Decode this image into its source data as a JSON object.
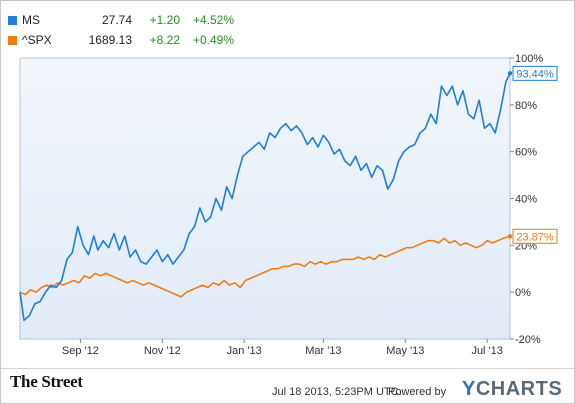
{
  "legend": [
    {
      "symbol": "MS",
      "price": "27.74",
      "change": "+1.20",
      "pct_change": "+4.52%",
      "color": "#1f7fd6"
    },
    {
      "symbol": "^SPX",
      "price": "1689.13",
      "change": "+8.22",
      "pct_change": "+0.49%",
      "color": "#ef7d16"
    }
  ],
  "footer": {
    "logo_text": "The Street",
    "timestamp": "Jul 18 2013, 5:23PM UTC.",
    "powered_by": "Powered by",
    "brand_y": "Y",
    "brand_rest": "CHARTS"
  },
  "chart_data": {
    "type": "line",
    "title": "",
    "xlabel": "",
    "ylabel": "",
    "ylim": [
      -20,
      100
    ],
    "yticks": [
      "100%",
      "80%",
      "60%",
      "40%",
      "20%",
      "0%",
      "-20%"
    ],
    "xticks": [
      "Sep '12",
      "Nov '12",
      "Jan '13",
      "Mar '13",
      "May '13",
      "Jul '13"
    ],
    "grid": false,
    "end_labels": [
      "93.44%",
      "23.87%"
    ],
    "series": [
      {
        "name": "MS",
        "color": "#1f7fd6",
        "x": [
          "2012-07-18",
          "2012-07-21",
          "2012-07-25",
          "2012-07-29",
          "2012-08-02",
          "2012-08-06",
          "2012-08-10",
          "2012-08-14",
          "2012-08-18",
          "2012-08-22",
          "2012-08-26",
          "2012-08-30",
          "2012-09-03",
          "2012-09-07",
          "2012-09-11",
          "2012-09-14",
          "2012-09-18",
          "2012-09-22",
          "2012-09-26",
          "2012-09-30",
          "2012-10-04",
          "2012-10-08",
          "2012-10-12",
          "2012-10-16",
          "2012-10-20",
          "2012-10-24",
          "2012-10-28",
          "2012-11-01",
          "2012-11-05",
          "2012-11-09",
          "2012-11-13",
          "2012-11-17",
          "2012-11-21",
          "2012-11-25",
          "2012-11-29",
          "2012-12-03",
          "2012-12-07",
          "2012-12-11",
          "2012-12-15",
          "2012-12-19",
          "2012-12-23",
          "2012-12-27",
          "2012-12-31",
          "2013-01-04",
          "2013-01-08",
          "2013-01-12",
          "2013-01-16",
          "2013-01-20",
          "2013-01-24",
          "2013-01-28",
          "2013-02-01",
          "2013-02-05",
          "2013-02-09",
          "2013-02-13",
          "2013-02-17",
          "2013-02-21",
          "2013-02-25",
          "2013-03-01",
          "2013-03-05",
          "2013-03-09",
          "2013-03-13",
          "2013-03-17",
          "2013-03-21",
          "2013-03-25",
          "2013-03-29",
          "2013-04-02",
          "2013-04-06",
          "2013-04-10",
          "2013-04-14",
          "2013-04-18",
          "2013-04-22",
          "2013-04-26",
          "2013-04-30",
          "2013-05-04",
          "2013-05-08",
          "2013-05-12",
          "2013-05-16",
          "2013-05-20",
          "2013-05-24",
          "2013-05-28",
          "2013-06-01",
          "2013-06-05",
          "2013-06-09",
          "2013-06-13",
          "2013-06-17",
          "2013-06-21",
          "2013-06-25",
          "2013-06-29",
          "2013-07-03",
          "2013-07-07",
          "2013-07-11",
          "2013-07-15",
          "2013-07-18"
        ],
        "y": [
          0,
          -12,
          -10,
          -5,
          -4,
          0,
          3,
          2,
          5,
          14,
          17,
          28,
          20,
          16,
          24,
          18,
          22,
          19,
          25,
          18,
          24,
          15,
          18,
          13,
          12,
          15,
          18,
          13,
          16,
          12,
          15,
          18,
          25,
          28,
          36,
          30,
          32,
          40,
          35,
          45,
          40,
          50,
          58,
          60,
          62,
          64,
          61,
          68,
          66,
          70,
          72,
          69,
          71,
          68,
          63,
          66,
          62,
          67,
          64,
          59,
          61,
          56,
          54,
          58,
          52,
          55,
          49,
          54,
          52,
          44,
          48,
          56,
          60,
          62,
          63,
          68,
          70,
          76,
          72,
          88,
          84,
          88,
          80,
          86,
          76,
          74,
          82,
          70,
          72,
          68,
          78,
          90,
          93.44
        ]
      },
      {
        "name": "^SPX",
        "color": "#ef7d16",
        "x": [
          "2012-07-18",
          "2012-07-22",
          "2012-07-26",
          "2012-07-30",
          "2012-08-03",
          "2012-08-07",
          "2012-08-11",
          "2012-08-15",
          "2012-08-19",
          "2012-08-23",
          "2012-08-27",
          "2012-08-31",
          "2012-09-04",
          "2012-09-08",
          "2012-09-12",
          "2012-09-16",
          "2012-09-20",
          "2012-09-24",
          "2012-09-28",
          "2012-10-02",
          "2012-10-06",
          "2012-10-10",
          "2012-10-14",
          "2012-10-18",
          "2012-10-22",
          "2012-10-26",
          "2012-10-30",
          "2012-11-03",
          "2012-11-07",
          "2012-11-11",
          "2012-11-15",
          "2012-11-19",
          "2012-11-23",
          "2012-11-27",
          "2012-12-01",
          "2012-12-05",
          "2012-12-09",
          "2012-12-13",
          "2012-12-17",
          "2012-12-21",
          "2012-12-25",
          "2012-12-29",
          "2013-01-02",
          "2013-01-06",
          "2013-01-10",
          "2013-01-14",
          "2013-01-18",
          "2013-01-22",
          "2013-01-26",
          "2013-01-30",
          "2013-02-03",
          "2013-02-07",
          "2013-02-11",
          "2013-02-15",
          "2013-02-19",
          "2013-02-23",
          "2013-02-27",
          "2013-03-03",
          "2013-03-07",
          "2013-03-11",
          "2013-03-15",
          "2013-03-19",
          "2013-03-23",
          "2013-03-27",
          "2013-03-31",
          "2013-04-04",
          "2013-04-08",
          "2013-04-12",
          "2013-04-16",
          "2013-04-20",
          "2013-04-24",
          "2013-04-28",
          "2013-05-02",
          "2013-05-06",
          "2013-05-10",
          "2013-05-14",
          "2013-05-18",
          "2013-05-22",
          "2013-05-26",
          "2013-05-30",
          "2013-06-03",
          "2013-06-07",
          "2013-06-11",
          "2013-06-15",
          "2013-06-19",
          "2013-06-23",
          "2013-06-27",
          "2013-07-01",
          "2013-07-05",
          "2013-07-09",
          "2013-07-13",
          "2013-07-18"
        ],
        "y": [
          0,
          -1,
          1,
          0,
          2,
          3,
          2,
          4,
          3,
          4,
          5,
          4,
          7,
          6,
          8,
          7,
          8,
          7,
          6,
          5,
          4,
          5,
          4,
          3,
          4,
          3,
          2,
          1,
          0,
          -1,
          -2,
          0,
          1,
          2,
          3,
          2,
          4,
          3,
          5,
          3,
          4,
          2,
          5,
          6,
          7,
          8,
          9,
          10,
          10,
          11,
          11,
          12,
          12,
          11,
          13,
          12,
          13,
          12,
          13,
          13,
          14,
          14,
          14,
          15,
          14,
          15,
          14,
          16,
          15,
          16,
          17,
          18,
          19,
          19,
          20,
          21,
          22,
          22,
          21,
          23,
          21,
          22,
          20,
          21,
          20,
          19,
          20,
          22,
          21,
          22,
          23,
          23.87
        ]
      }
    ]
  }
}
